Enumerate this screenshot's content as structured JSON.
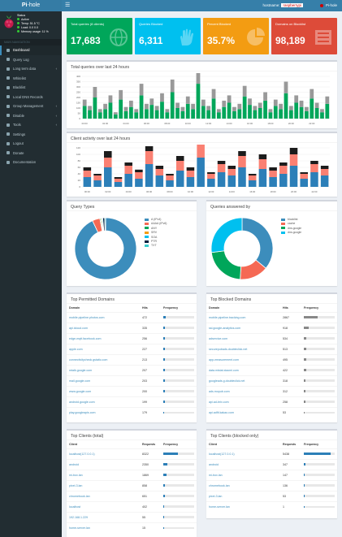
{
  "header": {
    "logo_pi": "Pi",
    "logo_rest": "-hole",
    "hostname_label": "hostname:",
    "hostname": "raspberrypi",
    "user": "Pi-hole"
  },
  "sidebar": {
    "status": [
      "Status",
      "Active",
      "Temp: 51.5 °C",
      "Load: 0.0 0.0",
      "Memory usage: 11 %"
    ],
    "nav_header": "MAIN NAVIGATION",
    "items": [
      {
        "label": "Dashboard",
        "active": true,
        "chev": false
      },
      {
        "label": "Query Log",
        "active": false,
        "chev": false
      },
      {
        "label": "Long term data",
        "active": false,
        "chev": true
      },
      {
        "label": "Whitelist",
        "active": false,
        "chev": false
      },
      {
        "label": "Blacklist",
        "active": false,
        "chev": false
      },
      {
        "label": "Local DNS Records",
        "active": false,
        "chev": false
      },
      {
        "label": "Group Management",
        "active": false,
        "chev": true
      },
      {
        "label": "Disable",
        "active": false,
        "chev": true
      },
      {
        "label": "Tools",
        "active": false,
        "chev": true
      },
      {
        "label": "Settings",
        "active": false,
        "chev": false
      },
      {
        "label": "Logout",
        "active": false,
        "chev": false
      },
      {
        "label": "Donate",
        "active": false,
        "chev": false
      },
      {
        "label": "Documentation",
        "active": false,
        "chev": false
      }
    ]
  },
  "stats": [
    {
      "title": "Total queries (8 clients)",
      "value": "17,683",
      "color": "#00a65a",
      "icon": "globe-icon"
    },
    {
      "title": "Queries Blocked",
      "value": "6,311",
      "color": "#00c0ef",
      "icon": "hand-icon"
    },
    {
      "title": "Percent Blocked",
      "value": "35.7%",
      "color": "#f39c12",
      "icon": "pie-icon"
    },
    {
      "title": "Domains on Blocklist",
      "value": "98,189",
      "color": "#dd4b39",
      "icon": "list-icon"
    }
  ],
  "charts": {
    "queries_title": "Total queries over last 24 hours",
    "clients_title": "Client activity over last 24 hours",
    "query_types_title": "Query Types",
    "forward_title": "Queries answered by"
  },
  "chart_data": [
    {
      "type": "bar",
      "title": "Total queries over last 24 hours",
      "ylim": [
        0,
        400
      ],
      "yticks": [
        "400",
        "350",
        "300",
        "250",
        "200",
        "150",
        "100",
        "50",
        "0"
      ],
      "x": [
        "00:00",
        "00:30",
        "01:00",
        "01:30",
        "02:00",
        "02:30",
        "03:00",
        "03:30",
        "04:00",
        "04:30",
        "05:00",
        "05:30",
        "06:00",
        "06:30",
        "07:00",
        "07:30",
        "08:00",
        "08:30",
        "09:00",
        "09:30",
        "10:00",
        "10:30",
        "11:00",
        "11:30",
        "12:00",
        "12:30",
        "13:00",
        "13:30",
        "14:00",
        "14:30",
        "15:00",
        "15:30",
        "16:00",
        "16:30",
        "17:00",
        "17:30",
        "18:00",
        "18:30",
        "19:00",
        "19:30",
        "20:00",
        "20:30",
        "21:00",
        "21:30",
        "22:00",
        "22:30",
        "23:00",
        "23:30"
      ],
      "series": [
        {
          "color": "#00a65a",
          "values": [
            120,
            80,
            200,
            60,
            90,
            150,
            40,
            180,
            70,
            110,
            60,
            220,
            90,
            130,
            80,
            160,
            60,
            250,
            100,
            70,
            140,
            90,
            330,
            120,
            80,
            190,
            60,
            110,
            150,
            70,
            90,
            210,
            130,
            80,
            100,
            170,
            60,
            120,
            90,
            240,
            80,
            150,
            110,
            70,
            190,
            100,
            60,
            140
          ]
        },
        {
          "color": "#999999",
          "values": [
            60,
            40,
            100,
            30,
            50,
            70,
            20,
            90,
            40,
            60,
            30,
            110,
            50,
            60,
            40,
            80,
            30,
            120,
            50,
            40,
            70,
            50,
            160,
            60,
            40,
            90,
            30,
            60,
            70,
            40,
            50,
            100,
            60,
            40,
            50,
            80,
            30,
            60,
            50,
            110,
            40,
            70,
            60,
            40,
            90,
            50,
            30,
            70
          ]
        }
      ]
    },
    {
      "type": "bar",
      "title": "Client activity over last 24 hours",
      "ylim": [
        0,
        120
      ],
      "yticks": [
        "120",
        "100",
        "80",
        "60",
        "40",
        "20",
        "0"
      ],
      "x": [
        "00:00",
        "01:00",
        "02:00",
        "03:00",
        "04:00",
        "05:00",
        "06:00",
        "07:00",
        "08:00",
        "09:00",
        "10:00",
        "11:00",
        "12:00",
        "13:00",
        "14:00",
        "15:00",
        "16:00",
        "17:00",
        "18:00",
        "19:00",
        "20:00",
        "21:00",
        "22:00",
        "23:00"
      ],
      "series": [
        {
          "color": "#2c7fb8",
          "values": [
            30,
            20,
            60,
            15,
            40,
            25,
            70,
            35,
            20,
            50,
            30,
            90,
            25,
            45,
            35,
            60,
            20,
            55,
            30,
            40,
            65,
            25,
            45,
            35
          ]
        },
        {
          "color": "#fa8072",
          "values": [
            20,
            15,
            30,
            10,
            25,
            20,
            40,
            20,
            15,
            30,
            20,
            50,
            15,
            25,
            20,
            35,
            15,
            30,
            20,
            25,
            35,
            15,
            25,
            20
          ]
        },
        {
          "color": "#1c1c1c",
          "values": [
            10,
            5,
            20,
            5,
            10,
            8,
            15,
            10,
            5,
            15,
            10,
            20,
            5,
            10,
            10,
            15,
            5,
            15,
            10,
            10,
            20,
            5,
            10,
            10
          ]
        }
      ]
    },
    {
      "type": "pie",
      "title": "Query Types",
      "categories": [
        "A (IPv4)",
        "AAAA (IPv6)",
        "ANY",
        "SRV",
        "SOA",
        "PTR",
        "TXT"
      ],
      "values": [
        93.0,
        4.0,
        0.5,
        0.5,
        0.5,
        1.0,
        0.5
      ],
      "colors": [
        "#3c8dbc",
        "#f56954",
        "#00a65a",
        "#f39c12",
        "#00c0ef",
        "#001f3f",
        "#39cccc"
      ]
    },
    {
      "type": "pie",
      "title": "Queries answered by",
      "categories": [
        "blocklist",
        "cache",
        "dns.google",
        "dns.google"
      ],
      "values": [
        36.0,
        15.0,
        22.0,
        27.0
      ],
      "colors": [
        "#3c8dbc",
        "#f56954",
        "#00a65a",
        "#00c0ef"
      ]
    }
  ],
  "top_domains": {
    "title": "Top Permitted Domains",
    "headers": [
      "Domain",
      "Hits",
      "Frequency"
    ],
    "rows": [
      {
        "domain": "mobile.pipeline.photos.com",
        "hits": "472",
        "freq": 0.08
      },
      {
        "domain": "api.icloud.com",
        "hits": "335",
        "freq": 0.06
      },
      {
        "domain": "edge-mqtt.facebook.com",
        "hits": "256",
        "freq": 0.05
      },
      {
        "domain": "apple.com",
        "hits": "227",
        "freq": 0.04
      },
      {
        "domain": "connectivitycheck.gstatic.com",
        "hits": "213",
        "freq": 0.04
      },
      {
        "domain": "mtalk.google.com",
        "hits": "207",
        "freq": 0.04
      },
      {
        "domain": "mail.google.com",
        "hits": "203",
        "freq": 0.04
      },
      {
        "domain": "www.google.com",
        "hits": "200",
        "freq": 0.04
      },
      {
        "domain": "android.google.com",
        "hits": "199",
        "freq": 0.04
      },
      {
        "domain": "play.googleapis.com",
        "hits": "179",
        "freq": 0.03
      }
    ]
  },
  "top_ads": {
    "title": "Top Blocked Domains",
    "headers": [
      "Domain",
      "Hits",
      "Frequency"
    ],
    "rows": [
      {
        "domain": "mobile.pipeline.tracking.com",
        "hits": "2867",
        "freq": 0.45
      },
      {
        "domain": "ssl.google-analytics.com",
        "hits": "918",
        "freq": 0.15
      },
      {
        "domain": "adservice.com",
        "hits": "534",
        "freq": 0.08
      },
      {
        "domain": "securepubads.doubleclick.net",
        "hits": "513",
        "freq": 0.08
      },
      {
        "domain": "app-measurement.com",
        "hits": "495",
        "freq": 0.08
      },
      {
        "domain": "data.mistat.xiaomi.com",
        "hits": "422",
        "freq": 0.07
      },
      {
        "domain": "googleads.g.doubleclick.net",
        "hits": "318",
        "freq": 0.05
      },
      {
        "domain": "ads.mopub.com",
        "hits": "312",
        "freq": 0.05
      },
      {
        "domain": "api.ad-brix.com",
        "hits": "258",
        "freq": 0.04
      },
      {
        "domain": "api.adfit.kakao.com",
        "hits": "53",
        "freq": 0.01
      }
    ]
  },
  "top_clients": {
    "title": "Top Clients (total)",
    "headers": [
      "Client",
      "Requests",
      "Frequency"
    ],
    "rows": [
      {
        "client": "localhost(127.0.0.1)",
        "req": "8322",
        "freq": 0.47
      },
      {
        "client": "android",
        "req": "2350",
        "freq": 0.13
      },
      {
        "client": "mi-box.lan",
        "req": "1869",
        "freq": 0.11
      },
      {
        "client": "pixel-3.lan",
        "req": "858",
        "freq": 0.05
      },
      {
        "client": "chromebook.lan",
        "req": "651",
        "freq": 0.04
      },
      {
        "client": "localhost",
        "req": "402",
        "freq": 0.02
      },
      {
        "client": "192.168.1.229",
        "req": "55",
        "freq": 0.01
      },
      {
        "client": "home-server.lan",
        "req": "15",
        "freq": 0.01
      }
    ]
  },
  "top_blocked_clients": {
    "title": "Top Clients (blocked only)",
    "headers": [
      "Client",
      "Requests",
      "Frequency"
    ],
    "rows": [
      {
        "client": "localhost(127.0.0.1)",
        "req": "5438",
        "freq": 0.86
      },
      {
        "client": "android",
        "req": "347",
        "freq": 0.05
      },
      {
        "client": "mi-box.lan",
        "req": "147",
        "freq": 0.02
      },
      {
        "client": "chromebook.lan",
        "req": "136",
        "freq": 0.02
      },
      {
        "client": "pixel-3.lan",
        "req": "53",
        "freq": 0.01
      },
      {
        "client": "home-server.lan",
        "req": "1",
        "freq": 0.002
      }
    ]
  }
}
